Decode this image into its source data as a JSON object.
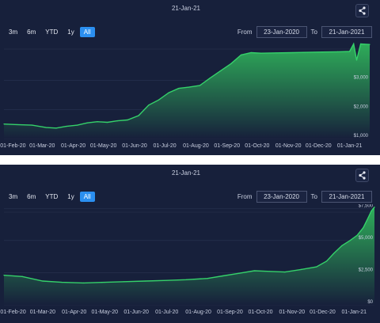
{
  "colors": {
    "background": "#17203b",
    "line": "#35d16a",
    "fill_top": "#2fb45b",
    "fill_bottom": "#17203b",
    "active_button": "#2b8ff0",
    "grid": "#2a3452"
  },
  "icons": {
    "share": "share-icon"
  },
  "chart_data": [
    {
      "type": "area",
      "title": "21-Jan-21",
      "range_buttons": [
        "3m",
        "6m",
        "YTD",
        "1y",
        "All"
      ],
      "active_range": "All",
      "from_label": "From",
      "from_value": "23-Jan-2020",
      "to_label": "To",
      "to_value": "21-Jan-2021",
      "x_ticks": [
        "01-Feb-20",
        "01-Mar-20",
        "01-Apr-20",
        "01-May-20",
        "01-Jun-20",
        "01-Jul-20",
        "01-Aug-20",
        "01-Sep-20",
        "01-Oct-20",
        "01-Nov-20",
        "01-Dec-20",
        "01-Jan-21"
      ],
      "y_ticks": [
        "$1,000",
        "$2,000",
        "$3,000"
      ],
      "ylim": [
        1000,
        4300
      ],
      "grid": "horizontal",
      "x": [
        "2020-01-23",
        "2020-02-05",
        "2020-02-20",
        "2020-03-05",
        "2020-03-15",
        "2020-03-25",
        "2020-04-05",
        "2020-04-15",
        "2020-04-25",
        "2020-05-05",
        "2020-05-15",
        "2020-05-25",
        "2020-06-05",
        "2020-06-15",
        "2020-06-25",
        "2020-07-05",
        "2020-07-15",
        "2020-07-25",
        "2020-08-05",
        "2020-08-15",
        "2020-08-25",
        "2020-09-05",
        "2020-09-15",
        "2020-09-25",
        "2020-10-05",
        "2020-10-20",
        "2020-11-05",
        "2020-11-20",
        "2020-12-05",
        "2020-12-20",
        "2021-01-01",
        "2021-01-05",
        "2021-01-08",
        "2021-01-12",
        "2021-01-16",
        "2021-01-21"
      ],
      "values": [
        1500,
        1480,
        1460,
        1380,
        1360,
        1420,
        1460,
        1540,
        1580,
        1560,
        1610,
        1640,
        1790,
        2150,
        2330,
        2580,
        2730,
        2770,
        2830,
        3080,
        3320,
        3580,
        3880,
        3960,
        3940,
        3950,
        3960,
        3970,
        3980,
        3990,
        4000,
        4260,
        3700,
        4260,
        4250,
        4240
      ]
    },
    {
      "type": "area",
      "title": "21-Jan-21",
      "range_buttons": [
        "3m",
        "6m",
        "YTD",
        "1y",
        "All"
      ],
      "active_range": "All",
      "from_label": "From",
      "from_value": "23-Jan-2020",
      "to_label": "To",
      "to_value": "21-Jan-2021",
      "x_ticks": [
        "01-Feb-20",
        "01-Mar-20",
        "01-Apr-20",
        "01-May-20",
        "01-Jun-20",
        "01-Jul-20",
        "01-Aug-20",
        "01-Sep-20",
        "01-Oct-20",
        "01-Nov-20",
        "01-Dec-20",
        "01-Jan-21"
      ],
      "y_ticks": [
        "$0",
        "$2,500",
        "$5,000",
        "$7,500"
      ],
      "ylim": [
        0,
        7700
      ],
      "grid": "horizontal",
      "x": [
        "2020-01-23",
        "2020-02-10",
        "2020-03-01",
        "2020-03-20",
        "2020-04-10",
        "2020-05-01",
        "2020-05-20",
        "2020-06-10",
        "2020-07-01",
        "2020-07-20",
        "2020-08-10",
        "2020-08-25",
        "2020-09-10",
        "2020-09-25",
        "2020-10-10",
        "2020-10-25",
        "2020-11-10",
        "2020-11-25",
        "2020-12-05",
        "2020-12-12",
        "2020-12-20",
        "2020-12-28",
        "2021-01-04",
        "2021-01-10",
        "2021-01-15",
        "2021-01-18",
        "2021-01-21"
      ],
      "values": [
        2300,
        2200,
        1850,
        1750,
        1700,
        1750,
        1800,
        1850,
        1900,
        1950,
        2050,
        2250,
        2450,
        2650,
        2600,
        2550,
        2750,
        2950,
        3400,
        4000,
        4600,
        5000,
        5400,
        6000,
        6800,
        7300,
        7600
      ]
    }
  ]
}
